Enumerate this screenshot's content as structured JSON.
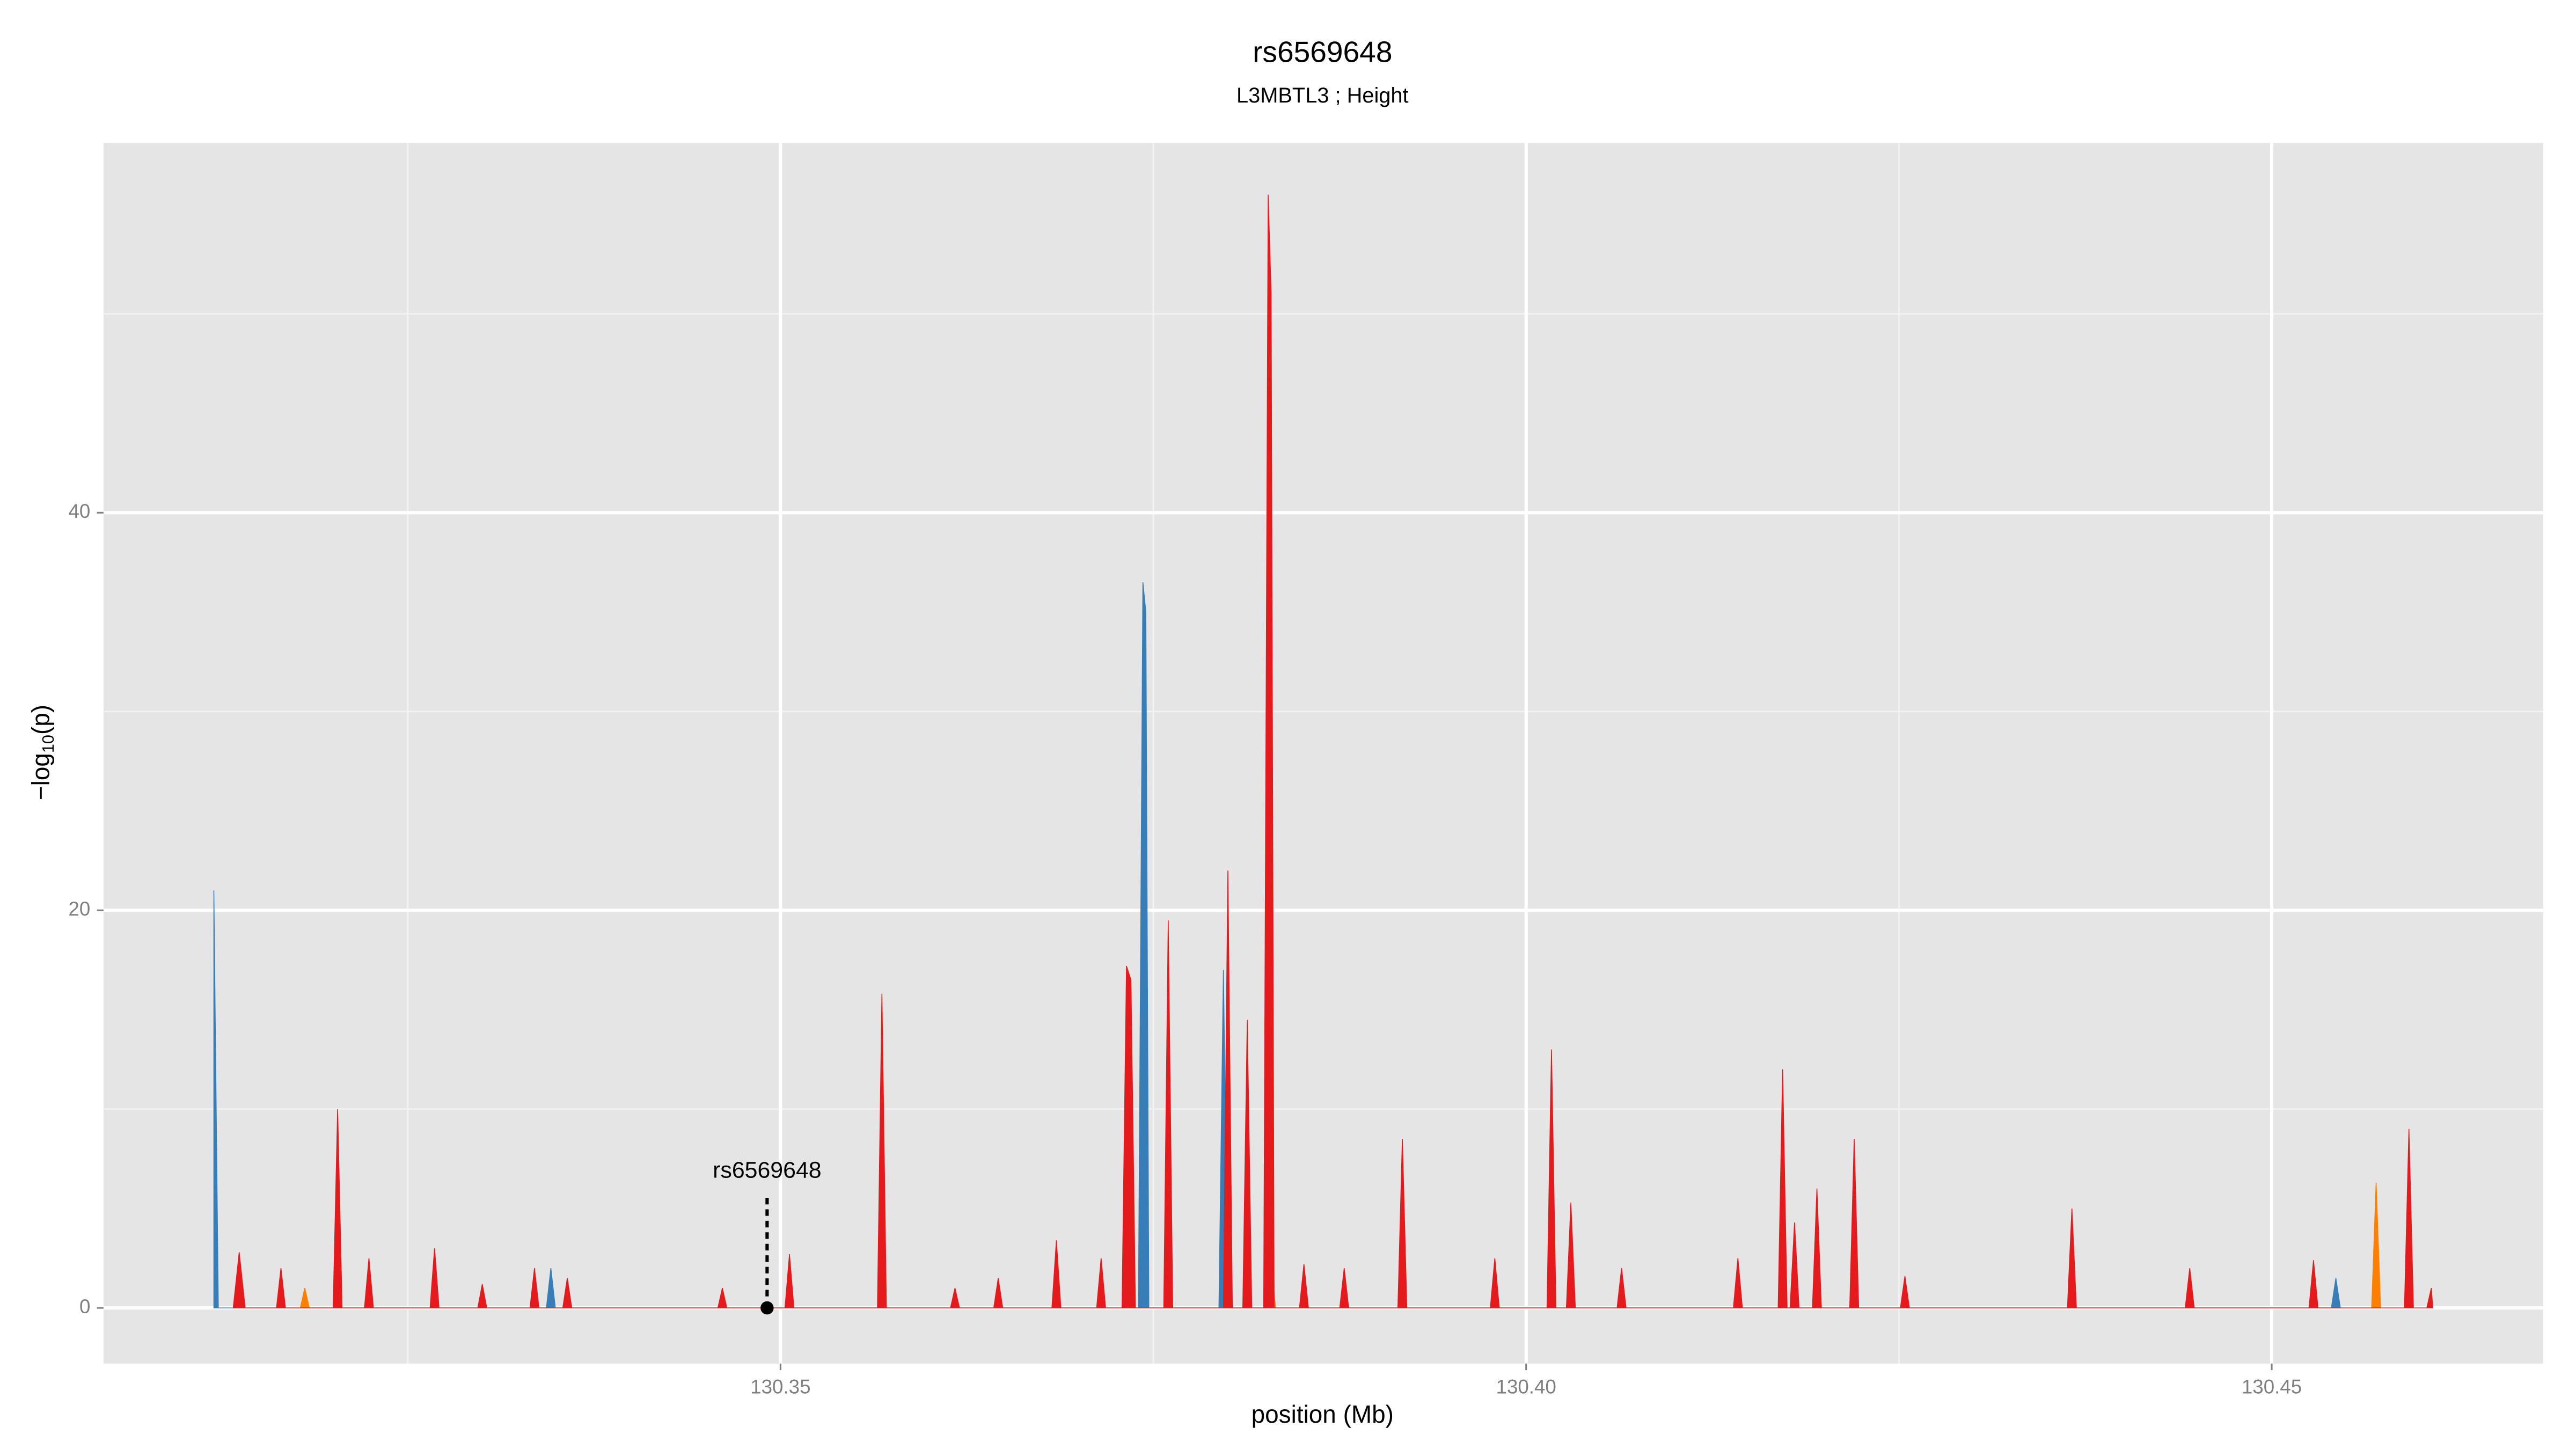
{
  "chart_data": {
    "type": "area",
    "title": "rs6569648",
    "subtitle": "L3MBTL3 ; Height",
    "xlabel": "position (Mb)",
    "ylabel_parts": [
      "−log",
      "10",
      "(p)"
    ],
    "xlim": [
      130.3046,
      130.4682
    ],
    "ylim": [
      -2.8,
      58.6
    ],
    "xticks": [
      130.35,
      {
        "value": 130.4,
        "label": "130.40"
      },
      130.45
    ],
    "yticks": [
      0,
      20,
      40
    ],
    "x_minor_ticks": [
      130.325,
      130.375,
      130.425
    ],
    "y_minor_ticks": [
      10,
      30,
      50
    ],
    "grid": true,
    "annotation": {
      "label": "rs6569648",
      "x": 130.3491,
      "y": 0
    },
    "series": [
      {
        "color": "#377eb8",
        "x": [
          130.312,
          130.3123,
          130.3343,
          130.3346,
          130.3349,
          130.374,
          130.3743,
          130.3745,
          130.3747,
          130.3794,
          130.3797,
          130.38,
          130.454,
          130.4543,
          130.4546
        ],
        "values": [
          21,
          0,
          0,
          2,
          0,
          0,
          36.5,
          35,
          0,
          0,
          17,
          0,
          0,
          1.5,
          0
        ]
      },
      {
        "color": "#ff7f00",
        "x": [
          130.3178,
          130.3181,
          130.3184,
          130.3825,
          130.3828,
          130.3832,
          130.4567,
          130.457,
          130.4573
        ],
        "values": [
          0,
          1,
          0,
          0,
          3,
          0,
          0,
          6.3,
          0
        ]
      },
      {
        "color": "#e41a1c",
        "x": [
          130.3133,
          130.3137,
          130.3141,
          130.3162,
          130.3165,
          130.3168,
          130.32,
          130.3203,
          130.3206,
          130.3221,
          130.3224,
          130.3227,
          130.3265,
          130.3268,
          130.3271,
          130.3297,
          130.33,
          130.3303,
          130.3332,
          130.3335,
          130.3338,
          130.3354,
          130.3357,
          130.336,
          130.3458,
          130.3461,
          130.3464,
          130.3503,
          130.3506,
          130.3509,
          130.3565,
          130.3568,
          130.3571,
          130.3614,
          130.3617,
          130.362,
          130.3643,
          130.3646,
          130.3649,
          130.3682,
          130.3685,
          130.3688,
          130.3712,
          130.3715,
          130.3718,
          130.3729,
          130.3732,
          130.3735,
          130.3738,
          130.3757,
          130.376,
          130.3763,
          130.3797,
          130.38,
          130.3803,
          130.381,
          130.3813,
          130.3816,
          130.3824,
          130.3827,
          130.3829,
          130.3831,
          130.3848,
          130.3851,
          130.3854,
          130.3875,
          130.3878,
          130.3881,
          130.3914,
          130.3917,
          130.392,
          130.3976,
          130.3979,
          130.3982,
          130.4014,
          130.4017,
          130.402,
          130.4027,
          130.403,
          130.4033,
          130.4061,
          130.4064,
          130.4067,
          130.4139,
          130.4142,
          130.4145,
          130.4169,
          130.4172,
          130.4175,
          130.4177,
          130.418,
          130.4183,
          130.4192,
          130.4195,
          130.4198,
          130.4217,
          130.422,
          130.4223,
          130.4251,
          130.4254,
          130.4257,
          130.4363,
          130.4366,
          130.4369,
          130.4442,
          130.4445,
          130.4448,
          130.4525,
          130.4528,
          130.4531,
          130.4589,
          130.4592,
          130.4595,
          130.4604,
          130.4607,
          130.4608
        ],
        "values": [
          0,
          2.8,
          0,
          0,
          2,
          0,
          0,
          10,
          0,
          0,
          2.5,
          0,
          0,
          3,
          0,
          0,
          1.2,
          0,
          0,
          2,
          0,
          0,
          1.5,
          0,
          0,
          1,
          0,
          0,
          2.7,
          0,
          0,
          15.8,
          0,
          0,
          1,
          0,
          0,
          1.5,
          0,
          0,
          3.4,
          0,
          0,
          2.5,
          0,
          0,
          17.2,
          16.5,
          0,
          0,
          19.5,
          0,
          0,
          22,
          0,
          0,
          14.5,
          0,
          0,
          56,
          51,
          0,
          0,
          2.2,
          0,
          0,
          2,
          0,
          0,
          8.5,
          0,
          0,
          2.5,
          0,
          0,
          13,
          0,
          0,
          5.3,
          0,
          0,
          2,
          0,
          0,
          2.5,
          0,
          0,
          12,
          0,
          0,
          4.3,
          0,
          0,
          6,
          0,
          0,
          8.5,
          0,
          0,
          1.6,
          0,
          0,
          5,
          0,
          0,
          2,
          0,
          0,
          2.4,
          0,
          0,
          9,
          0,
          0,
          1,
          0
        ]
      }
    ]
  }
}
